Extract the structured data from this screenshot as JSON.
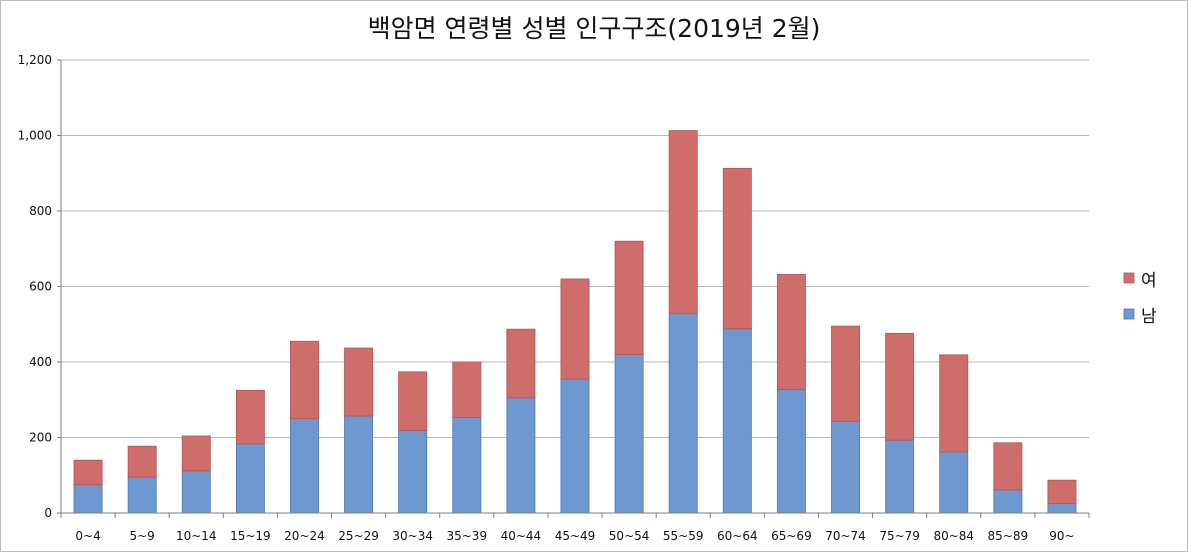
{
  "chart_data": {
    "type": "bar",
    "stacked": true,
    "title": "백암면 연령별 성별 인구구조(2019년 2월)",
    "xlabel": "",
    "ylabel": "",
    "ylim": [
      0,
      1200
    ],
    "y_ticks": [
      0,
      200,
      400,
      600,
      800,
      1000,
      1200
    ],
    "y_tick_labels": [
      "0",
      "200",
      "400",
      "600",
      "800",
      "1,000",
      "1,200"
    ],
    "grid": true,
    "legend_position": "right",
    "categories": [
      "0~4",
      "5~9",
      "10~14",
      "15~19",
      "20~24",
      "25~29",
      "30~34",
      "35~39",
      "40~44",
      "45~49",
      "50~54",
      "55~59",
      "60~64",
      "65~69",
      "70~74",
      "75~79",
      "80~84",
      "85~89",
      "90~"
    ],
    "series": [
      {
        "name": "남",
        "color": "#6e98cf",
        "values": [
          75,
          95,
          112,
          183,
          250,
          257,
          219,
          253,
          305,
          355,
          420,
          528,
          488,
          327,
          243,
          193,
          162,
          61,
          25
        ]
      },
      {
        "name": "여",
        "color": "#cf6d6b",
        "values": [
          65,
          82,
          92,
          142,
          205,
          180,
          155,
          147,
          182,
          265,
          300,
          485,
          425,
          305,
          252,
          283,
          257,
          125,
          62
        ]
      }
    ],
    "legend_order": [
      "여",
      "남"
    ]
  }
}
